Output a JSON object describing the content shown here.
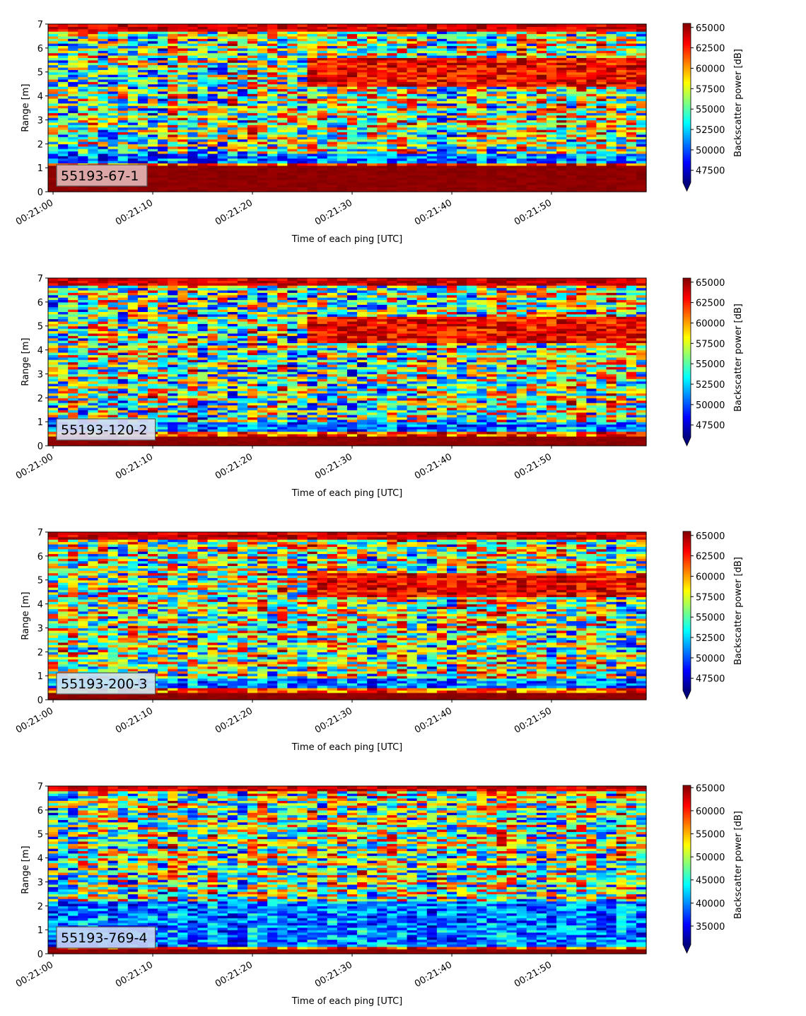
{
  "chart_data": [
    {
      "type": "heatmap",
      "label": "55193-67-1",
      "label_color": "#e3b4b4",
      "xlabel": "Time of each ping [UTC]",
      "ylabel": "Range [m]",
      "colorbar_label": "Backscatter power [dB]",
      "colormap": "jet",
      "xlim": [
        "00:20:59.5",
        "00:21:59.5"
      ],
      "ylim": [
        0,
        7
      ],
      "xticks": [
        "00:21:00",
        "00:21:10",
        "00:21:20",
        "00:21:30",
        "00:21:40",
        "00:21:50"
      ],
      "yticks": [
        0,
        1,
        2,
        3,
        4,
        5,
        6,
        7
      ],
      "clim": [
        46000,
        65500
      ],
      "cbar_ticks": [
        47500,
        50000,
        52500,
        55000,
        57500,
        60000,
        62500,
        65000
      ],
      "extend": "min",
      "features": {
        "bottom_red_top": 1.15,
        "blue_band_low": 1.25,
        "blue_band_high": 1.6,
        "red_cloud_start": 26,
        "red_cloud_low": 4.4,
        "red_cloud_high": 5.6,
        "top_red_from": 6.7
      },
      "seed": 11
    },
    {
      "type": "heatmap",
      "label": "55193-120-2",
      "label_color": "#d8dcf0",
      "xlabel": "Time of each ping [UTC]",
      "ylabel": "Range [m]",
      "colorbar_label": "Backscatter power [dB]",
      "colormap": "jet",
      "xlim": [
        "00:20:59.5",
        "00:21:59.5"
      ],
      "ylim": [
        0,
        7
      ],
      "xticks": [
        "00:21:00",
        "00:21:10",
        "00:21:20",
        "00:21:30",
        "00:21:40",
        "00:21:50"
      ],
      "yticks": [
        0,
        1,
        2,
        3,
        4,
        5,
        6,
        7
      ],
      "clim": [
        46000,
        65500
      ],
      "cbar_ticks": [
        47500,
        50000,
        52500,
        55000,
        57500,
        60000,
        62500,
        65000
      ],
      "extend": "min",
      "features": {
        "bottom_red_top": 0.45,
        "blue_band_low": 0.6,
        "blue_band_high": 1.0,
        "red_cloud_start": 26,
        "red_cloud_low": 4.3,
        "red_cloud_high": 5.4,
        "top_red_from": 6.7
      },
      "seed": 23
    },
    {
      "type": "heatmap",
      "label": "55193-200-3",
      "label_color": "#cce3f0",
      "xlabel": "Time of each ping [UTC]",
      "ylabel": "Range [m]",
      "colorbar_label": "Backscatter power [dB]",
      "colormap": "jet",
      "xlim": [
        "00:20:59.5",
        "00:21:59.5"
      ],
      "ylim": [
        0,
        7
      ],
      "xticks": [
        "00:21:00",
        "00:21:10",
        "00:21:20",
        "00:21:30",
        "00:21:40",
        "00:21:50"
      ],
      "yticks": [
        0,
        1,
        2,
        3,
        4,
        5,
        6,
        7
      ],
      "clim": [
        46000,
        65500
      ],
      "cbar_ticks": [
        47500,
        50000,
        52500,
        55000,
        57500,
        60000,
        62500,
        65000
      ],
      "extend": "min",
      "features": {
        "bottom_red_top": 0.35,
        "blue_band_low": 0.5,
        "blue_band_high": 0.9,
        "red_cloud_start": 26,
        "red_cloud_low": 4.3,
        "red_cloud_high": 5.3,
        "top_red_from": 6.7
      },
      "seed": 37
    },
    {
      "type": "heatmap",
      "label": "55193-769-4",
      "label_color": "#c4d4f4",
      "xlabel": "Time of each ping [UTC]",
      "ylabel": "Range [m]",
      "colorbar_label": "Backscatter power [dB]",
      "colormap": "jet",
      "xlim": [
        "00:20:59.5",
        "00:21:59.5"
      ],
      "ylim": [
        0,
        7
      ],
      "xticks": [
        "00:21:00",
        "00:21:10",
        "00:21:20",
        "00:21:30",
        "00:21:40",
        "00:21:50"
      ],
      "yticks": [
        0,
        1,
        2,
        3,
        4,
        5,
        6,
        7
      ],
      "clim": [
        31000,
        65500
      ],
      "cbar_ticks": [
        35000,
        40000,
        45000,
        50000,
        55000,
        60000,
        65000
      ],
      "extend": "min",
      "features": {
        "bottom_red_top": 0.25,
        "blue_band_low": 0.35,
        "blue_band_high": 2.2,
        "red_cloud_start": 60,
        "red_cloud_low": 4.4,
        "red_cloud_high": 5.2,
        "top_red_from": 6.75
      },
      "seed": 53
    }
  ]
}
